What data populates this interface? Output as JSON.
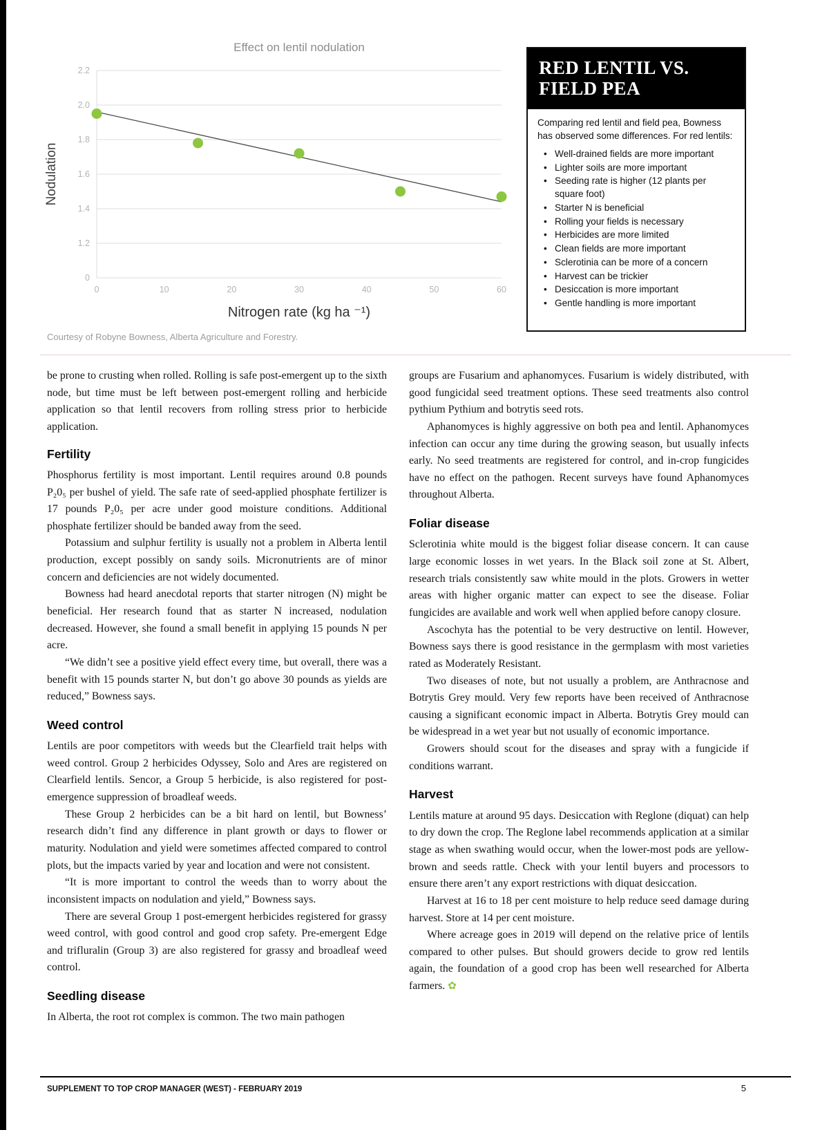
{
  "chart": {
    "title": "Effect on lentil nodulation",
    "ylabel": "Nodulation",
    "xlabel": "Nitrogen rate (kg ha ⁻¹)",
    "caption": "Courtesy of Robyne Bowness, Alberta Agriculture and Forestry."
  },
  "chart_data": {
    "type": "scatter",
    "x": [
      0,
      15,
      30,
      45,
      60
    ],
    "y": [
      1.95,
      1.78,
      1.72,
      1.5,
      1.47
    ],
    "trendline": {
      "x": [
        0,
        60
      ],
      "y": [
        1.96,
        1.44
      ]
    },
    "x_ticks": [
      0,
      10,
      20,
      30,
      40,
      50,
      60
    ],
    "y_ticks": [
      0,
      1.2,
      1.4,
      1.6,
      1.8,
      2.0,
      2.2
    ],
    "y_tick_labels": [
      "0",
      "1.2",
      "1.4",
      "1.6",
      "1.8",
      "2.0",
      "2.2"
    ],
    "x_tick_labels": [
      "0",
      "10",
      "20",
      "30",
      "40",
      "50",
      "60"
    ],
    "point_color": "#8dc63f",
    "trend_color": "#4a4a4a",
    "grid_color": "#dcdcdc",
    "tick_color": "#b3b3b3",
    "title_color": "#8c8c8c",
    "grid": "horizontal-only",
    "legend": "none"
  },
  "sidebar": {
    "title_line1": "RED LENTIL VS.",
    "title_line2": "FIELD PEA",
    "intro": "Comparing red lentil and field pea, Bowness has observed some differences. For red lentils:",
    "bullets": [
      "Well-drained fields are more important",
      "Lighter soils are more important",
      "Seeding rate is higher (12 plants per square foot)",
      "Starter N is beneficial",
      "Rolling your fields is necessary",
      "Herbicides are more limited",
      "Clean fields are more important",
      "Sclerotinia can be more of a concern",
      "Harvest can be trickier",
      "Desiccation is more important",
      "Gentle handling is more important"
    ]
  },
  "article": {
    "left": [
      {
        "type": "p",
        "text": "be prone to crusting when rolled.  Rolling is safe post-emergent up to the sixth node, but time must be left between post-emergent rolling and herbicide application so that lentil recovers from rolling stress prior to herbicide application."
      },
      {
        "type": "h",
        "text": "Fertility"
      },
      {
        "type": "p",
        "text": "Phosphorus fertility is most important. Lentil requires around 0.8 pounds P₂0₅ per bushel of yield. The safe rate of seed-applied phosphate fertilizer is 17 pounds P₂0₅ per acre under good moisture conditions. Additional phosphate fertilizer should be banded away from the seed."
      },
      {
        "type": "p",
        "text": "Potassium and sulphur fertility is usually not a problem in Alberta lentil production, except possibly on sandy soils. Micronutrients are of minor concern and deficiencies are not widely documented."
      },
      {
        "type": "p",
        "text": "Bowness had heard anecdotal reports that starter nitrogen (N) might be beneficial. Her research found that as starter N increased, nodulation decreased.  However, she found a small benefit in applying 15 pounds N per acre."
      },
      {
        "type": "p",
        "text": "“We didn’t see a positive yield effect every time, but overall, there was a benefit with 15 pounds starter N, but don’t go above 30 pounds as yields are reduced,” Bowness says."
      },
      {
        "type": "h",
        "text": "Weed control"
      },
      {
        "type": "p",
        "text": "Lentils are poor competitors with weeds but the Clearfield trait helps with weed control. Group 2 herbicides Odyssey, Solo and Ares are registered on Clearfield lentils. Sencor, a Group 5 herbicide, is also registered for post-emergence suppression of broadleaf weeds."
      },
      {
        "type": "p",
        "text": "These Group 2 herbicides can be a bit hard on lentil, but Bowness’ research didn’t find any difference in plant growth or days to flower or maturity. Nodulation and yield were sometimes affected compared to control plots, but the impacts varied by year and location and were not consistent."
      },
      {
        "type": "p",
        "text": "“It is more important to control the weeds than to worry about the inconsistent impacts on nodulation and yield,” Bowness says."
      },
      {
        "type": "p",
        "text": "There are several Group 1 post-emergent herbicides registered for grassy weed control, with good control and good crop safety. Pre-emergent Edge and trifluralin (Group 3) are also registered for grassy and broadleaf weed control."
      },
      {
        "type": "h",
        "text": "Seedling disease"
      },
      {
        "type": "p",
        "text": "In Alberta, the root rot complex is common. The two main pathogen"
      }
    ],
    "right": [
      {
        "type": "p",
        "text": "groups are Fusarium and aphanomyces. Fusarium is widely distributed, with good fungicidal seed treatment options. These seed treatments also control pythium Pythium and botrytis seed rots."
      },
      {
        "type": "p",
        "text": "Aphanomyces is highly aggressive on both pea and lentil. Aphanomyces infection can occur any time during the growing season, but usually infects early. No seed treatments are registered for control, and in-crop fungicides have no effect on the pathogen. Recent surveys have found Aphanomyces throughout Alberta."
      },
      {
        "type": "h",
        "text": "Foliar disease"
      },
      {
        "type": "p",
        "text": "Sclerotinia white mould is the biggest foliar disease concern. It can cause large economic losses in wet years. In the Black soil zone at St. Albert, research trials consistently saw white mould in the plots. Growers in wetter areas with higher organic matter can expect to see the disease.  Foliar fungicides are available and work well when applied before canopy closure."
      },
      {
        "type": "p",
        "text": "Ascochyta has the potential to be very destructive on lentil. However, Bowness says there is good resistance in the germplasm with most varieties rated as Moderately Resistant."
      },
      {
        "type": "p",
        "text": "Two diseases of note, but not usually a problem, are Anthracnose and Botrytis Grey mould. Very few reports have been received of Anthracnose causing a significant economic impact in Alberta. Botrytis Grey mould can be widespread in a wet year but not usually of economic importance."
      },
      {
        "type": "p",
        "text": "Growers should scout for the diseases and spray with a fungicide if conditions warrant."
      },
      {
        "type": "h",
        "text": "Harvest"
      },
      {
        "type": "p",
        "text": "Lentils mature at around 95 days. Desiccation with Reglone (diquat) can help to dry down the crop. The Reglone label recommends application at a similar stage as when swathing would occur, when the lower-most pods are yellow-brown and seeds rattle. Check with your lentil buyers and processors to ensure there aren’t any export restrictions with diquat desiccation."
      },
      {
        "type": "p",
        "text": "Harvest at 16 to 18 per cent moisture to help reduce seed damage during harvest. Store at 14 per cent moisture."
      },
      {
        "type": "p",
        "text": "Where acreage goes in 2019 will depend on the relative price of lentils compared to other pulses. But should growers decide to grow red lentils again, the foundation of a good crop has been well researched for Alberta farmers."
      }
    ],
    "end_mark_glyph": "✿"
  },
  "footer": {
    "left": "SUPPLEMENT TO TOP CROP MANAGER (WEST) - FEBRUARY 2019",
    "page_number": "5"
  }
}
